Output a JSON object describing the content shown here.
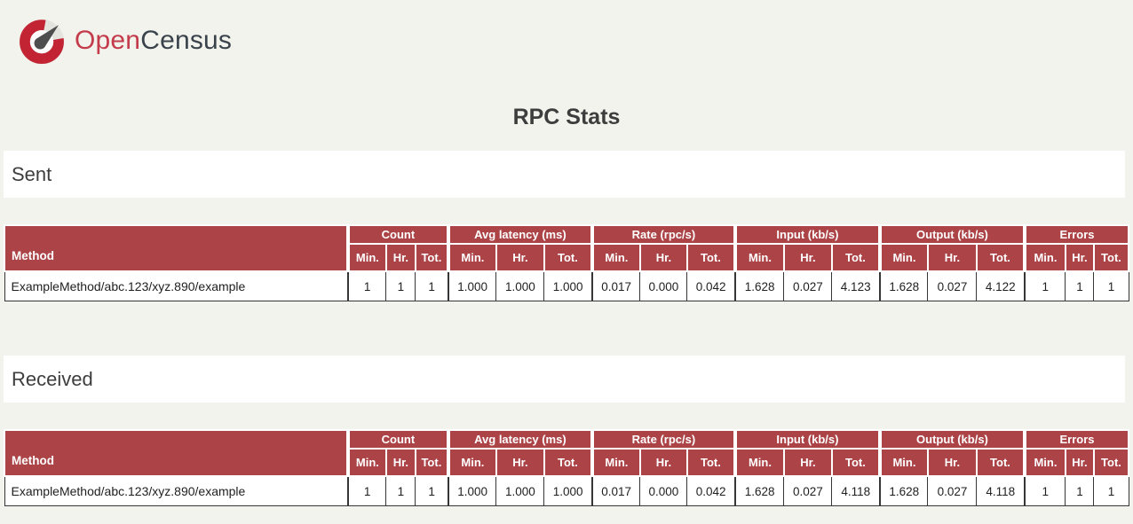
{
  "brand": {
    "name_primary": "Open",
    "name_secondary": "Census"
  },
  "page_title": "RPC Stats",
  "table_schema": {
    "method_header": "Method",
    "groups": [
      {
        "key": "count",
        "label": "Count"
      },
      {
        "key": "avg-latency",
        "label": "Avg latency (ms)"
      },
      {
        "key": "rate",
        "label": "Rate (rpc/s)"
      },
      {
        "key": "input",
        "label": "Input (kb/s)"
      },
      {
        "key": "output",
        "label": "Output (kb/s)"
      },
      {
        "key": "errors",
        "label": "Errors"
      }
    ],
    "sub_headers": [
      "Min.",
      "Hr.",
      "Tot."
    ]
  },
  "sections": [
    {
      "id": "sent",
      "heading": "Sent",
      "rows": [
        {
          "method": "ExampleMethod/abc.123/xyz.890/example",
          "values": [
            "1",
            "1",
            "1",
            "1.000",
            "1.000",
            "1.000",
            "0.017",
            "0.000",
            "0.042",
            "1.628",
            "0.027",
            "4.123",
            "1.628",
            "0.027",
            "4.122",
            "1",
            "1",
            "1"
          ]
        }
      ]
    },
    {
      "id": "received",
      "heading": "Received",
      "rows": [
        {
          "method": "ExampleMethod/abc.123/xyz.890/example",
          "values": [
            "1",
            "1",
            "1",
            "1.000",
            "1.000",
            "1.000",
            "0.017",
            "0.000",
            "0.042",
            "1.628",
            "0.027",
            "4.118",
            "1.628",
            "0.027",
            "4.118",
            "1",
            "1",
            "1"
          ]
        }
      ]
    }
  ],
  "colors": {
    "page_background": "#f2f3ec",
    "panel_background": "#ffffff",
    "table_header_background": "#ac4447",
    "table_header_text": "#ffffff",
    "table_cell_border": "#363636",
    "heading_text": "#3d3d3d",
    "logo_red": "#c32433",
    "logo_needle": "#4e4e4e",
    "brand_primary_color": "#c43c4c",
    "brand_secondary_color": "#3a434c"
  }
}
